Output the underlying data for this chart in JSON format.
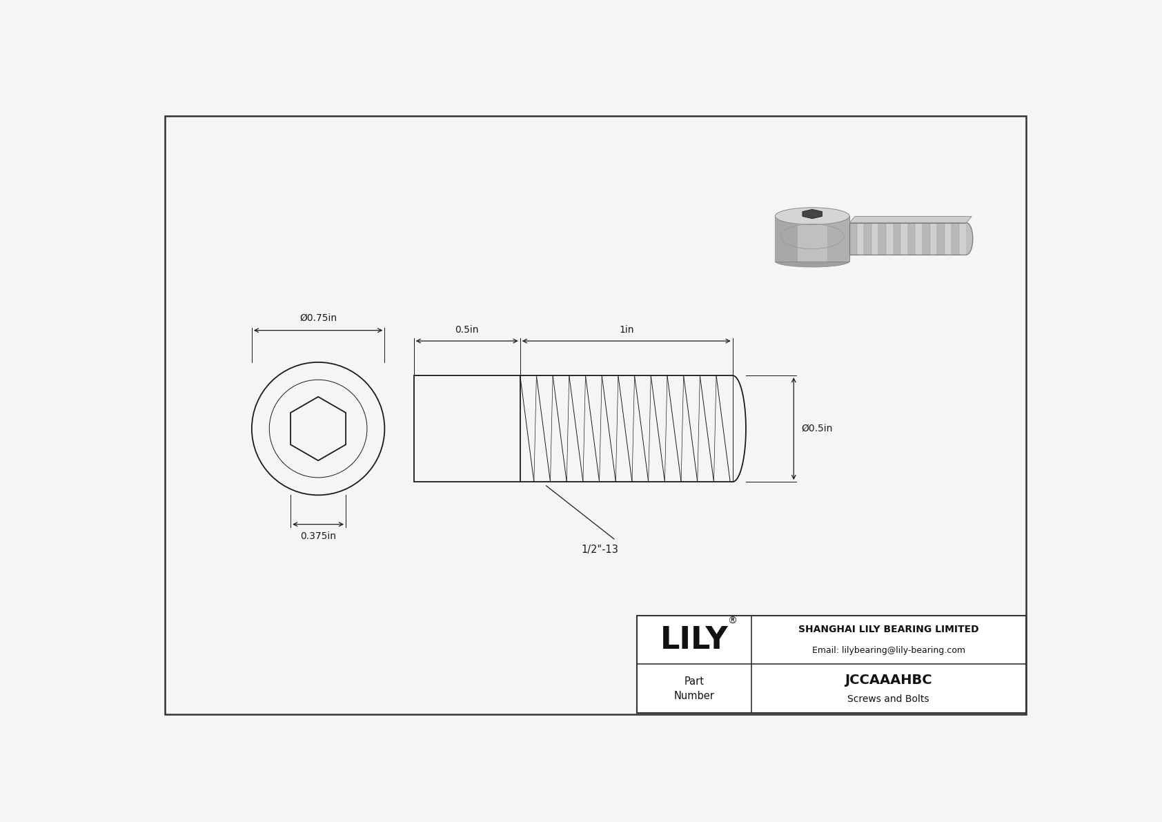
{
  "bg_color": "#f0f0f0",
  "paper_color": "#f5f5f5",
  "line_color": "#1a1a1a",
  "dim_color": "#1a1a1a",
  "title": "JCCAAAHBC",
  "subtitle": "Screws and Bolts",
  "company": "SHANGHAI LILY BEARING LIMITED",
  "email": "Email: lilybearing@lily-bearing.com",
  "part_label": "Part\nNumber",
  "logo": "LILY",
  "logo_reg": "®",
  "dim_outer": "0.75in",
  "dim_thread_len": "1in",
  "dim_head_len": "0.5in",
  "dim_thread_dia": "0.5in",
  "dim_hex_key": "0.375in",
  "thread_label": "1/2\"-13",
  "border_color": "#555555"
}
